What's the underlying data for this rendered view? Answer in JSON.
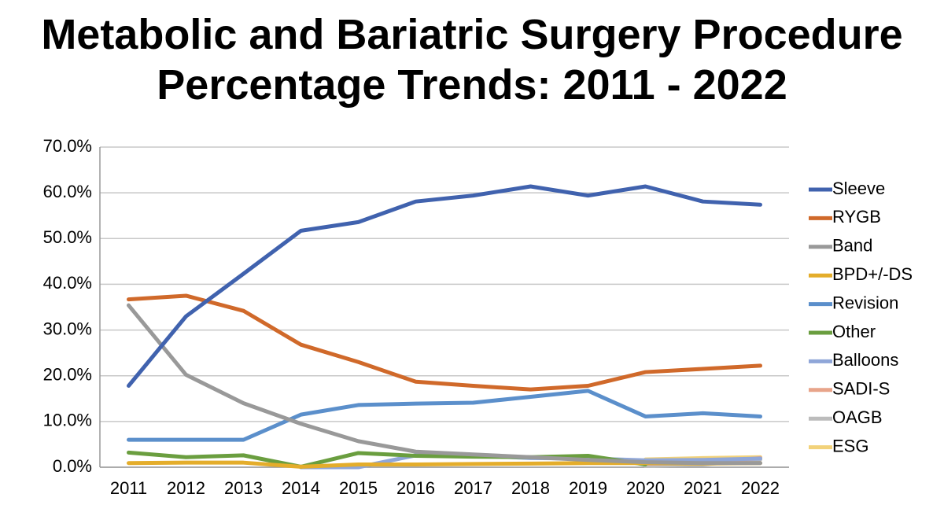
{
  "chart_data": {
    "type": "line",
    "title": "Metabolic and Bariatric Surgery Procedure Percentage Trends: 2011 - 2022",
    "categories": [
      "2011",
      "2012",
      "2013",
      "2014",
      "2015",
      "2016",
      "2017",
      "2018",
      "2019",
      "2020",
      "2021",
      "2022"
    ],
    "ylim": [
      0,
      70
    ],
    "yticks": [
      {
        "value": 0,
        "label": "0.0%"
      },
      {
        "value": 10,
        "label": "10.0%"
      },
      {
        "value": 20,
        "label": "20.0%"
      },
      {
        "value": 30,
        "label": "30.0%"
      },
      {
        "value": 40,
        "label": "40.0%"
      },
      {
        "value": 50,
        "label": "50.0%"
      },
      {
        "value": 60,
        "label": "60.0%"
      },
      {
        "value": 70,
        "label": "70.0%"
      }
    ],
    "grid": true,
    "legend": "right",
    "series": [
      {
        "name": "Sleeve",
        "color": "#4062ae",
        "values": [
          17.8,
          33.0,
          42.3,
          51.7,
          53.6,
          58.1,
          59.4,
          61.4,
          59.4,
          61.4,
          58.1,
          57.4
        ]
      },
      {
        "name": "RYGB",
        "color": "#d0692a",
        "values": [
          36.7,
          37.5,
          34.2,
          26.8,
          23.0,
          18.7,
          17.8,
          17.0,
          17.8,
          20.8,
          21.5,
          22.2
        ]
      },
      {
        "name": "Band",
        "color": "#999999",
        "values": [
          35.4,
          20.2,
          14.0,
          9.5,
          5.7,
          3.4,
          2.8,
          2.2,
          1.6,
          1.1,
          0.9,
          0.9
        ]
      },
      {
        "name": "BPD+/-DS",
        "color": "#e4ad2b",
        "values": [
          0.9,
          1.0,
          1.0,
          0.1,
          0.6,
          0.6,
          0.7,
          0.8,
          0.9,
          0.9,
          0.8,
          0.9
        ]
      },
      {
        "name": "Revision",
        "color": "#5b8fcb",
        "values": [
          6.0,
          6.0,
          6.0,
          11.5,
          13.6,
          13.9,
          14.1,
          15.4,
          16.7,
          11.1,
          11.8,
          11.1
        ]
      },
      {
        "name": "Other",
        "color": "#6a9e3f",
        "values": [
          3.2,
          2.2,
          2.6,
          0.1,
          3.1,
          2.5,
          2.3,
          2.2,
          2.5,
          0.6,
          null,
          null
        ]
      },
      {
        "name": "Balloons",
        "color": "#8fa6d8",
        "values": [
          null,
          null,
          null,
          0.0,
          0.0,
          2.6,
          2.6,
          2.0,
          1.9,
          1.5,
          1.6,
          1.9
        ]
      },
      {
        "name": "SADI-S",
        "color": "#e8a48a",
        "values": [
          null,
          null,
          null,
          null,
          null,
          null,
          null,
          null,
          null,
          0.8,
          0.9,
          2.0
        ]
      },
      {
        "name": "OAGB",
        "color": "#bcbcbc",
        "values": [
          null,
          null,
          null,
          null,
          null,
          null,
          null,
          null,
          null,
          0.3,
          0.6,
          1.7
        ]
      },
      {
        "name": "ESG",
        "color": "#f2d27a",
        "values": [
          null,
          null,
          null,
          null,
          null,
          null,
          null,
          null,
          null,
          1.7,
          2.0,
          2.2
        ]
      }
    ]
  }
}
